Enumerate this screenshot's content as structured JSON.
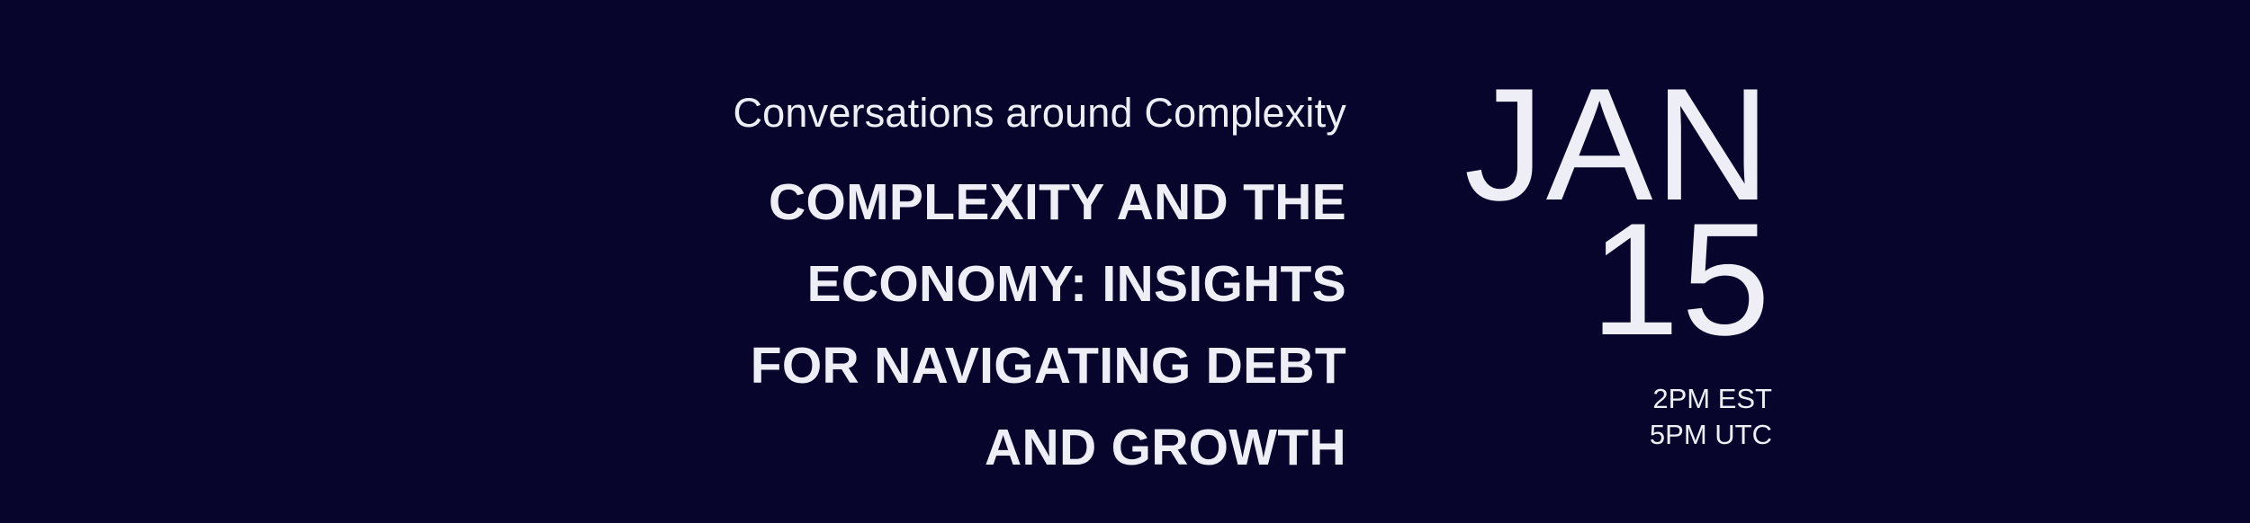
{
  "series": "Conversations around Complexity",
  "title_lines": [
    "COMPLEXITY AND THE",
    "ECONOMY: INSIGHTS",
    "FOR NAVIGATING DEBT",
    "AND GROWTH"
  ],
  "date": {
    "month": "JAN",
    "day": "15"
  },
  "times": [
    "2PM EST",
    "5PM UTC"
  ],
  "colors": {
    "background": "#07052c",
    "text": "#eeeef6"
  }
}
